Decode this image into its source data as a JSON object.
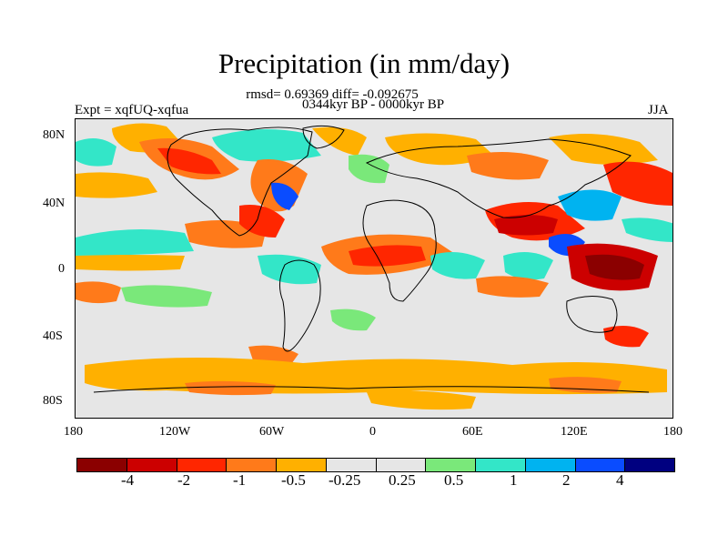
{
  "title": "Precipitation (in mm/day)",
  "stats_line": "rmsd= 0.69369 diff= -0.092675",
  "period_line": "0344kyr BP - 0000kyr BP",
  "expt_label": "Expt = xqfUQ-xqfua",
  "season": "JJA",
  "lat_labels": [
    "80N",
    "40N",
    "0",
    "40S",
    "80S"
  ],
  "lon_labels": [
    "180",
    "120W",
    "60W",
    "0",
    "60E",
    "120E",
    "180"
  ],
  "colorbar": {
    "colors": [
      "#8b0000",
      "#cc0000",
      "#ff2600",
      "#ff7a1a",
      "#ffb000",
      "#e6e6e6",
      "#e6e6e6",
      "#7ae87a",
      "#33e6c8",
      "#00b3f0",
      "#0a4cff",
      "#000080"
    ],
    "labels": [
      "-4",
      "-2",
      "-1",
      "-0.5",
      "-0.25",
      "0.25",
      "0.5",
      "1",
      "2",
      "4"
    ]
  },
  "colors": {
    "neutral": "#e6e6e6",
    "land_outline": "#000000"
  }
}
